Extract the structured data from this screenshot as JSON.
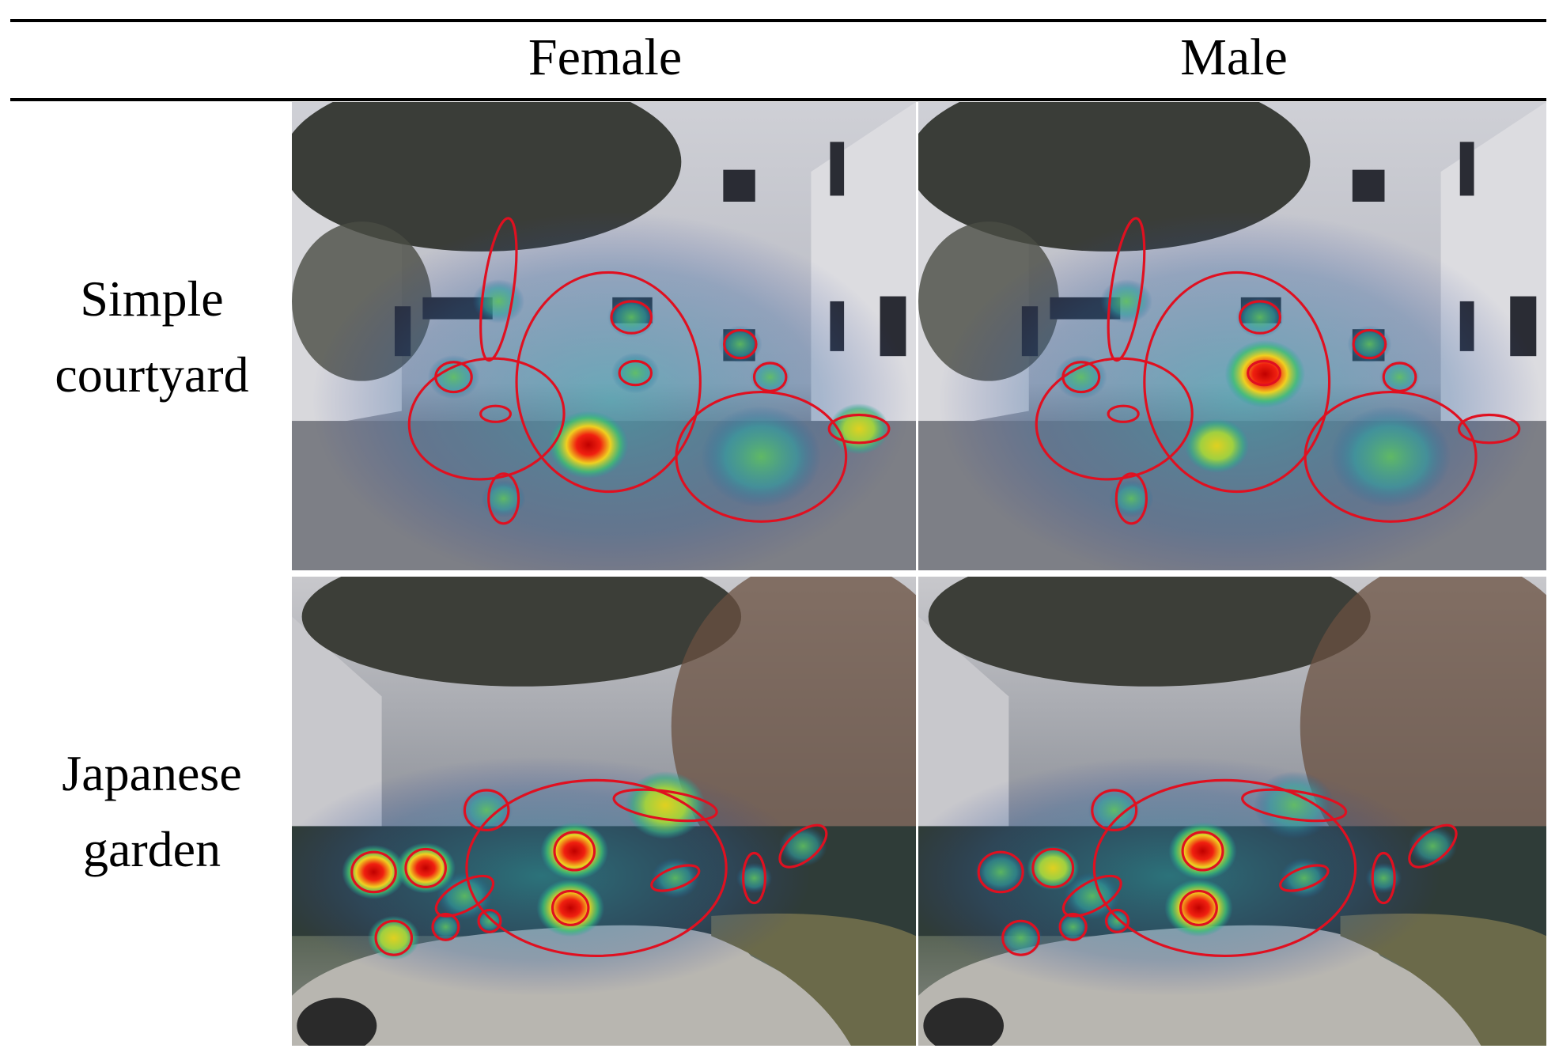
{
  "header": {
    "columns": [
      "Female",
      "Male"
    ]
  },
  "rows": [
    {
      "label_lines": [
        "Simple",
        "courtyard"
      ]
    },
    {
      "label_lines": [
        "Japanese",
        "garden"
      ]
    }
  ]
}
